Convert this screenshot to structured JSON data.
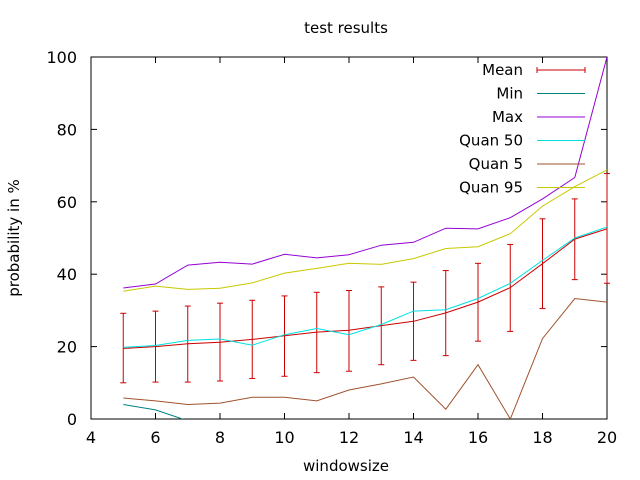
{
  "chart_data": {
    "type": "line",
    "title": "test results",
    "xlabel": "windowsize",
    "ylabel": "probability in %",
    "xlim": [
      4,
      20
    ],
    "ylim": [
      0,
      100
    ],
    "xticks": [
      4,
      6,
      8,
      10,
      12,
      14,
      16,
      18,
      20
    ],
    "yticks": [
      0,
      20,
      40,
      60,
      80,
      100
    ],
    "grid": false,
    "legend_position": "top-right",
    "x": [
      5,
      6,
      7,
      8,
      9,
      10,
      11,
      12,
      13,
      14,
      15,
      16,
      17,
      18,
      19,
      20
    ],
    "series": [
      {
        "name": "Mean",
        "color": "#cc0000",
        "values": [
          19.5,
          20.0,
          20.8,
          21.2,
          22.0,
          23.0,
          24.0,
          24.5,
          25.8,
          27.0,
          29.3,
          32.3,
          36.3,
          42.9,
          49.7,
          52.5
        ],
        "error_low": [
          10.0,
          10.2,
          10.2,
          10.5,
          11.2,
          11.8,
          12.8,
          13.2,
          15.0,
          16.2,
          17.5,
          21.5,
          24.2,
          30.5,
          38.5,
          37.5
        ],
        "error_high": [
          29.2,
          29.8,
          31.2,
          32.0,
          32.8,
          34.0,
          35.0,
          35.5,
          36.5,
          37.8,
          41.0,
          43.0,
          48.2,
          55.3,
          60.8,
          67.8
        ]
      },
      {
        "name": "Min",
        "color": "#008080",
        "values": [
          4.0,
          2.5,
          -0.5,
          -1,
          -1,
          -1,
          -1,
          -1,
          -1,
          -1,
          -1,
          -1,
          -1,
          -1,
          -1,
          -1
        ]
      },
      {
        "name": "Max",
        "color": "#9400d3",
        "values": [
          36.2,
          37.3,
          42.5,
          43.3,
          42.8,
          45.5,
          44.5,
          45.4,
          48.0,
          48.8,
          52.7,
          52.5,
          55.6,
          60.8,
          66.7,
          100
        ]
      },
      {
        "name": "Quan 50",
        "color": "#00e0e0",
        "values": [
          19.8,
          20.3,
          21.7,
          22.1,
          20.4,
          23.3,
          25.0,
          23.3,
          26.1,
          29.8,
          30.2,
          33.3,
          37.5,
          43.8,
          50.0,
          53.0
        ]
      },
      {
        "name": "Quan 5",
        "color": "#a0522d",
        "values": [
          5.8,
          5.0,
          4.0,
          4.4,
          6.0,
          6.0,
          5.0,
          8.0,
          9.7,
          11.6,
          2.7,
          15.0,
          0.0,
          22.2,
          33.3,
          32.3
        ]
      },
      {
        "name": "Quan 95",
        "color": "#c8c800",
        "values": [
          35.3,
          36.7,
          35.8,
          36.1,
          37.6,
          40.3,
          41.6,
          43.0,
          42.7,
          44.3,
          47.1,
          47.6,
          51.2,
          58.8,
          64.2,
          68.8
        ]
      }
    ]
  }
}
